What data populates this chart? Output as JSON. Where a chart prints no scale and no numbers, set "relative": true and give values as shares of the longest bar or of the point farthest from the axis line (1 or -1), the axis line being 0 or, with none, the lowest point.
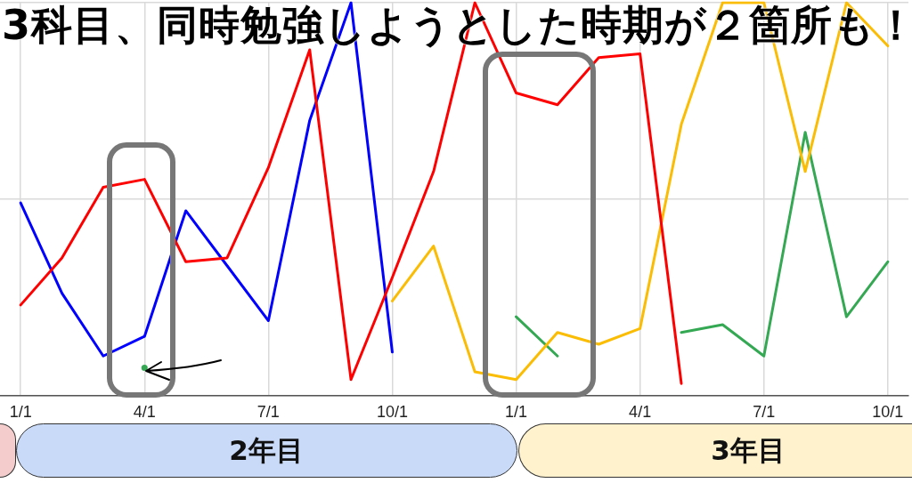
{
  "chart_data": {
    "type": "line",
    "title": "3科目、同時勉強しようとした時期が２箇所も！",
    "relative": true,
    "grid": true,
    "categories": [
      "1/1",
      null,
      null,
      "4/1",
      null,
      null,
      "7/1",
      null,
      null,
      "10/1",
      null,
      null,
      "1/1",
      null,
      null,
      "4/1",
      null,
      null,
      "7/1",
      null,
      null,
      "10/1"
    ],
    "series": [
      {
        "color": "#ff0000",
        "values": [
          0.23,
          0.35,
          0.53,
          0.55,
          0.34,
          0.35,
          0.58,
          0.88,
          0.04,
          0.3,
          0.57,
          1,
          0.77,
          0.74,
          0.86,
          0.87,
          0.03,
          null,
          null,
          null,
          null,
          null
        ]
      },
      {
        "color": "#0000ff",
        "values": [
          0.49,
          0.26,
          0.1,
          0.15,
          0.47,
          0.33,
          0.19,
          0.7,
          1,
          0.11,
          null,
          null,
          null,
          null,
          null,
          null,
          null,
          null,
          null,
          null,
          null,
          null
        ]
      },
      {
        "color": "#fbbc04",
        "values": [
          null,
          null,
          null,
          null,
          null,
          null,
          null,
          null,
          null,
          0.24,
          0.38,
          0.06,
          0.04,
          0.16,
          0.13,
          0.17,
          0.69,
          1,
          1,
          0.57,
          1,
          0.89
        ]
      },
      {
        "color": "#34a853",
        "values": [
          null,
          null,
          null,
          0.07,
          null,
          null,
          null,
          null,
          null,
          null,
          null,
          null,
          0.2,
          0.1,
          null,
          null,
          0.16,
          0.18,
          0.1,
          0.67,
          0.2,
          0.34
        ]
      }
    ],
    "annotations": [
      "2年目",
      "3年目"
    ]
  }
}
